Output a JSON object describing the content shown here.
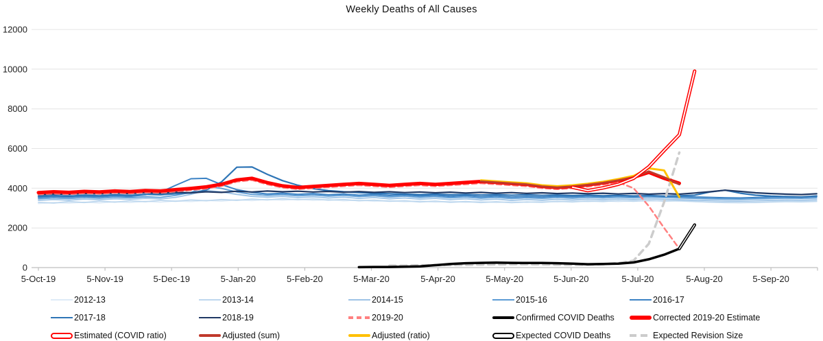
{
  "chart_data": {
    "type": "line",
    "title": "Weekly Deaths of All Causes",
    "xlabel": "",
    "ylabel": "",
    "ylim": [
      0,
      12000
    ],
    "y_ticks": [
      0,
      2000,
      4000,
      6000,
      8000,
      10000,
      12000
    ],
    "x_tick_labels": [
      "5-Oct-19",
      "5-Nov-19",
      "5-Dec-19",
      "5-Jan-20",
      "5-Feb-20",
      "5-Mar-20",
      "5-Apr-20",
      "5-May-20",
      "5-Jun-20",
      "5-Jul-20",
      "5-Aug-20",
      "5-Sep-20"
    ],
    "x_unit": "week (week 0 = 5-Oct-19)",
    "grid": "horizontal",
    "legend_position": "bottom",
    "series": [
      {
        "name": "2012-13",
        "color": "#DEEBF7",
        "style": "solid",
        "width": 1.8,
        "start_week": 0,
        "values": [
          3230,
          3280,
          3250,
          3300,
          3260,
          3320,
          3280,
          3340,
          3300,
          3360,
          3330,
          3390,
          3350,
          3420,
          3380,
          3440,
          3400,
          3450,
          3390,
          3430,
          3370,
          3410,
          3340,
          3380,
          3320,
          3360,
          3300,
          3340,
          3290,
          3330,
          3280,
          3320,
          3290,
          3340,
          3310,
          3360,
          3320,
          3370,
          3330,
          3380,
          3340,
          3390,
          3350,
          3330,
          3310,
          3290,
          3280,
          3270,
          3290,
          3310,
          3300,
          3320
        ]
      },
      {
        "name": "2013-14",
        "color": "#BDD7EE",
        "style": "solid",
        "width": 1.8,
        "start_week": 0,
        "values": [
          3290,
          3250,
          3330,
          3280,
          3350,
          3300,
          3370,
          3320,
          3390,
          3340,
          3410,
          3370,
          3430,
          3390,
          3450,
          3410,
          3470,
          3420,
          3460,
          3400,
          3430,
          3370,
          3400,
          3340,
          3370,
          3310,
          3350,
          3290,
          3330,
          3280,
          3320,
          3270,
          3310,
          3290,
          3340,
          3310,
          3360,
          3330,
          3380,
          3340,
          3390,
          3350,
          3370,
          3330,
          3300,
          3280,
          3270,
          3290,
          3320,
          3340,
          3330,
          3350
        ]
      },
      {
        "name": "2014-15",
        "color": "#9DC3E6",
        "style": "solid",
        "width": 1.8,
        "start_week": 0,
        "values": [
          3390,
          3430,
          3400,
          3450,
          3420,
          3470,
          3440,
          3490,
          3460,
          3540,
          3690,
          3890,
          3810,
          3690,
          3590,
          3550,
          3590,
          3530,
          3570,
          3510,
          3550,
          3490,
          3530,
          3470,
          3510,
          3450,
          3490,
          3430,
          3470,
          3410,
          3450,
          3390,
          3430,
          3400,
          3440,
          3410,
          3450,
          3420,
          3460,
          3430,
          3470,
          3440,
          3420,
          3400,
          3380,
          3360,
          3350,
          3370,
          3390,
          3410,
          3400,
          3420
        ]
      },
      {
        "name": "2015-16",
        "color": "#5B9BD5",
        "style": "solid",
        "width": 1.8,
        "start_week": 0,
        "values": [
          3470,
          3510,
          3480,
          3530,
          3500,
          3550,
          3520,
          3570,
          3540,
          3640,
          3790,
          4090,
          3990,
          3810,
          3690,
          3640,
          3680,
          3620,
          3660,
          3600,
          3640,
          3580,
          3620,
          3560,
          3600,
          3540,
          3580,
          3520,
          3560,
          3500,
          3540,
          3480,
          3520,
          3490,
          3530,
          3500,
          3540,
          3510,
          3550,
          3520,
          3560,
          3530,
          3510,
          3490,
          3470,
          3450,
          3440,
          3460,
          3480,
          3500,
          3490,
          3510
        ]
      },
      {
        "name": "2016-17",
        "color": "#3B82C4",
        "style": "solid",
        "width": 2,
        "start_week": 0,
        "values": [
          3540,
          3580,
          3550,
          3600,
          3570,
          3620,
          3590,
          3670,
          3800,
          4150,
          4480,
          4500,
          4180,
          3930,
          3790,
          3710,
          3750,
          3690,
          3730,
          3670,
          3710,
          3650,
          3690,
          3630,
          3670,
          3610,
          3650,
          3590,
          3630,
          3570,
          3610,
          3550,
          3590,
          3560,
          3600,
          3570,
          3610,
          3580,
          3620,
          3590,
          3630,
          3600,
          3580,
          3560,
          3540,
          3520,
          3510,
          3530,
          3550,
          3570,
          3560,
          3580
        ]
      },
      {
        "name": "2017-18",
        "color": "#2E75B6",
        "style": "solid",
        "width": 2.2,
        "start_week": 0,
        "values": [
          3590,
          3630,
          3600,
          3650,
          3620,
          3670,
          3640,
          3690,
          3670,
          3720,
          3760,
          3910,
          4320,
          5060,
          5070,
          4700,
          4380,
          4150,
          3980,
          3880,
          3820,
          3780,
          3750,
          3720,
          3700,
          3680,
          3700,
          3670,
          3690,
          3660,
          3680,
          3650,
          3670,
          3640,
          3660,
          3630,
          3650,
          3620,
          3640,
          3610,
          3630,
          3600,
          3620,
          3650,
          3810,
          3900,
          3750,
          3650,
          3600,
          3580,
          3560,
          3610
        ]
      },
      {
        "name": "2018-19",
        "color": "#1F3864",
        "style": "solid",
        "width": 2.2,
        "start_week": 0,
        "values": [
          3670,
          3710,
          3690,
          3740,
          3710,
          3760,
          3730,
          3780,
          3750,
          3800,
          3770,
          3820,
          3790,
          3850,
          3810,
          3860,
          3820,
          3850,
          3810,
          3840,
          3800,
          3830,
          3790,
          3820,
          3780,
          3810,
          3770,
          3800,
          3760,
          3790,
          3750,
          3780,
          3740,
          3770,
          3730,
          3760,
          3720,
          3750,
          3710,
          3740,
          3700,
          3730,
          3700,
          3760,
          3820,
          3900,
          3840,
          3770,
          3730,
          3700,
          3680,
          3720
        ]
      },
      {
        "name": "Expected Revision Size",
        "color": "#CCCCCC",
        "style": "dashed",
        "dash": "9 7",
        "width": 3.5,
        "start_week": 23,
        "values": [
          100,
          100,
          110,
          120,
          130,
          140,
          150,
          160,
          170,
          170,
          160,
          150,
          140,
          150,
          170,
          220,
          350,
          1200,
          3300,
          5800
        ]
      },
      {
        "name": "2019-20",
        "color": "#FF8080",
        "style": "dashed",
        "dash": "7 5",
        "width": 2.5,
        "start_week": 0,
        "values": [
          3690,
          3730,
          3700,
          3750,
          3720,
          3770,
          3740,
          3790,
          3770,
          3840,
          3900,
          3980,
          4110,
          4330,
          4410,
          4190,
          4030,
          3950,
          4000,
          4050,
          4100,
          4150,
          4100,
          4050,
          4100,
          4150,
          4100,
          4150,
          4200,
          4250,
          4200,
          4150,
          4100,
          4000,
          3950,
          4000,
          4080,
          4180,
          4300,
          4000,
          3100,
          2000,
          950
        ]
      },
      {
        "name": "Corrected 2019-20 Estimate",
        "color": "#FF0000",
        "style": "solid",
        "width": 5,
        "start_week": 0,
        "values": [
          3780,
          3820,
          3790,
          3840,
          3810,
          3860,
          3830,
          3880,
          3860,
          3930,
          3990,
          4070,
          4200,
          4420,
          4500,
          4280,
          4120,
          4040,
          4090,
          4140,
          4190,
          4240,
          4190,
          4140,
          4190,
          4240,
          4190,
          4240,
          4290,
          4340,
          4290,
          4240,
          4190,
          4090,
          4040,
          4090,
          4170,
          4270,
          4400,
          4550,
          4800,
          4500,
          4250
        ]
      },
      {
        "name": "Adjusted (ratio)",
        "color": "#FFC000",
        "style": "solid",
        "width": 3,
        "start_week": 29,
        "values": [
          4400,
          4350,
          4300,
          4250,
          4150,
          4100,
          4150,
          4230,
          4330,
          4460,
          4620,
          5000,
          4900,
          3550
        ]
      },
      {
        "name": "Adjusted (sum)",
        "color": "#C0392B",
        "style": "solid",
        "width": 3,
        "start_week": 29,
        "values": [
          4340,
          4290,
          4240,
          4190,
          4090,
          4040,
          4090,
          4170,
          4270,
          4400,
          4550,
          4850,
          4550,
          4200
        ]
      },
      {
        "name": "Estimated (COVID ratio)",
        "color": "#FF0000",
        "style": "hollow",
        "width": 5,
        "start_week": 35,
        "values": [
          4050,
          3880,
          4020,
          4200,
          4500,
          5080,
          5900,
          6700,
          9900
        ]
      },
      {
        "name": "Confirmed COVID Deaths",
        "color": "#000000",
        "style": "solid",
        "width": 3.5,
        "start_week": 21,
        "values": [
          20,
          30,
          30,
          40,
          60,
          120,
          180,
          220,
          240,
          250,
          240,
          230,
          230,
          220,
          200,
          170,
          180,
          200,
          260,
          420,
          650,
          950
        ]
      },
      {
        "name": "Expected COVID Deaths",
        "color": "#000000",
        "style": "hollow",
        "width": 4.5,
        "start_week": 42,
        "values": [
          950,
          2150
        ]
      }
    ],
    "legend": {
      "rows": [
        [
          {
            "label": "2012-13",
            "swatch": "line",
            "color": "#DEEBF7"
          },
          {
            "label": "2013-14",
            "swatch": "line",
            "color": "#BDD7EE"
          },
          {
            "label": "2014-15",
            "swatch": "line",
            "color": "#9DC3E6"
          },
          {
            "label": "2015-16",
            "swatch": "line",
            "color": "#5B9BD5"
          },
          {
            "label": "2016-17",
            "swatch": "line",
            "color": "#3B82C4"
          }
        ],
        [
          {
            "label": "2017-18",
            "swatch": "line",
            "color": "#2E75B6"
          },
          {
            "label": "2018-19",
            "swatch": "line",
            "color": "#1F3864"
          },
          {
            "label": "2019-20",
            "swatch": "dashed",
            "color": "#FF8080"
          },
          {
            "label": "Confirmed COVID Deaths",
            "swatch": "line-thick",
            "color": "#000000"
          },
          {
            "label": "Corrected 2019-20 Estimate",
            "swatch": "pill",
            "color": "#FF0000"
          }
        ],
        [
          {
            "label": "Estimated (COVID ratio)",
            "swatch": "hollow",
            "color": "#FF0000"
          },
          {
            "label": "Adjusted (sum)",
            "swatch": "line-med",
            "color": "#C0392B"
          },
          {
            "label": "Adjusted (ratio)",
            "swatch": "line-med",
            "color": "#FFC000"
          },
          {
            "label": "Expected COVID Deaths",
            "swatch": "hollow",
            "color": "#000000"
          },
          {
            "label": "Expected Revision Size",
            "swatch": "dashed-thick",
            "color": "#CCCCCC"
          }
        ]
      ]
    },
    "colors": {
      "gridline": "#E4E4E4",
      "axis_line": "#BFBFBF",
      "text": "#1f1f1f"
    }
  }
}
